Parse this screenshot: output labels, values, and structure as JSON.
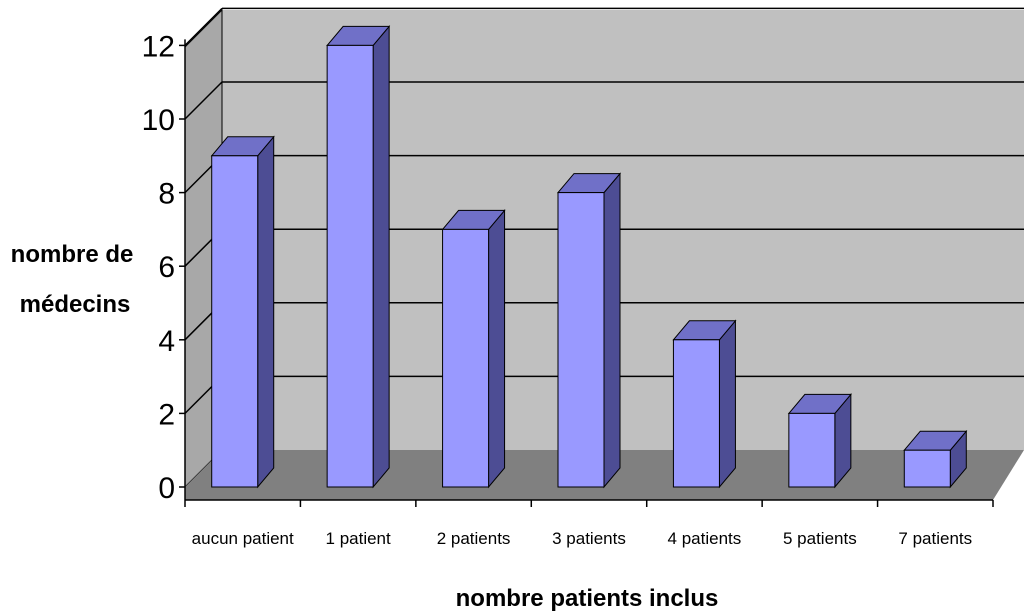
{
  "chart_data": {
    "type": "bar",
    "categories": [
      "aucun patient",
      "1 patient",
      "2 patients",
      "3 patients",
      "4 patients",
      "5 patients",
      "7 patients"
    ],
    "values": [
      9,
      12,
      7,
      8,
      4,
      2,
      1
    ],
    "xlabel": "nombre patients inclus",
    "ylabel_lines": [
      "nombre de",
      "médecins"
    ],
    "yticks": [
      "0",
      "2",
      "4",
      "6",
      "8",
      "10",
      "12"
    ],
    "ylim": [
      0,
      12
    ],
    "grid": true,
    "style": "3d-column"
  },
  "colors": {
    "bar_front": "#9999ff",
    "bar_top": "#7070c8",
    "bar_side": "#4d4d94",
    "wall": "#c0c0c0",
    "floor": "#808080",
    "gridline": "#000000"
  }
}
